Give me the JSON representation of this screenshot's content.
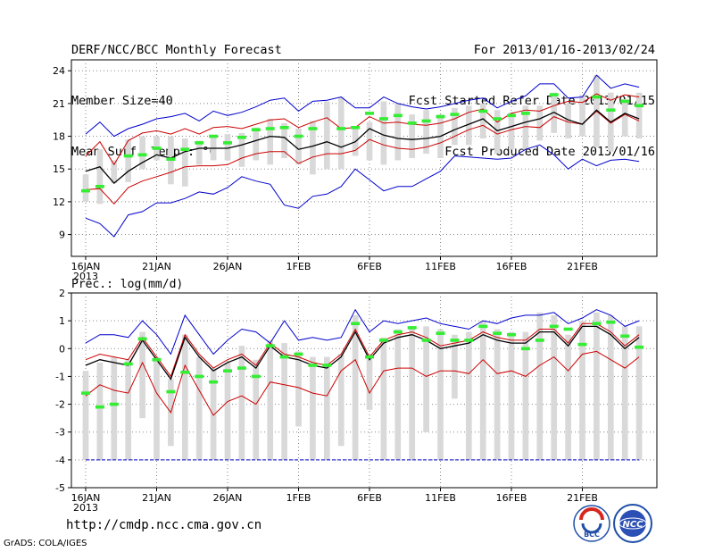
{
  "header": {
    "left": [
      "DERF/NCC/BCC Monthly Forecast",
      "Member Size=40",
      "Mean Surf. Temp.: °C"
    ],
    "right": [
      "For 2013/01/16-2013/02/24",
      "Fcst Started Refer Date 2013/01/15",
      "Fcst Produced Date 2013/01/16"
    ]
  },
  "footer": {
    "url": "http://cmdp.ncc.cma.gov.cn",
    "credit": "GrADS: COLA/IGES",
    "logos": [
      "BCC",
      "NCC"
    ]
  },
  "colors": {
    "envelope": "#0000cc",
    "spread": "#cc0000",
    "mean": "#000000",
    "member_box": "#d9d9d9",
    "marker": "#33ee33"
  },
  "chart_data": [
    {
      "type": "line",
      "title": "Mean Surf. Temp.: °C",
      "ylabel": "°C",
      "ylim": [
        7,
        25
      ],
      "yticks": [
        9,
        12,
        15,
        18,
        21,
        24
      ],
      "xticks": [
        "16JAN\n2013",
        "21JAN",
        "26JAN",
        "1FEB",
        "6FEB",
        "11FEB",
        "16FEB",
        "21FEB"
      ],
      "days": 40,
      "series": [
        {
          "name": "max",
          "values": [
            18.2,
            19.3,
            18.0,
            18.7,
            19.1,
            19.6,
            19.8,
            20.1,
            19.4,
            20.3,
            19.9,
            20.2,
            20.7,
            21.3,
            21.5,
            20.3,
            21.2,
            21.3,
            21.6,
            20.6,
            20.6,
            21.6,
            21.0,
            20.7,
            20.5,
            20.7,
            21.0,
            21.3,
            21.5,
            20.6,
            21.2,
            21.7,
            22.8,
            22.8,
            21.5,
            21.6,
            23.6,
            22.4,
            22.8,
            22.5
          ]
        },
        {
          "name": "upper",
          "values": [
            16.2,
            17.5,
            15.4,
            17.6,
            18.3,
            18.5,
            18.2,
            18.7,
            18.2,
            18.8,
            18.9,
            18.7,
            19.1,
            19.5,
            19.6,
            18.8,
            19.3,
            19.7,
            18.7,
            18.8,
            19.8,
            19.2,
            19.3,
            19.1,
            19.0,
            19.2,
            19.6,
            20.2,
            20.5,
            19.3,
            20.1,
            20.4,
            20.3,
            20.8,
            21.2,
            21.1,
            21.9,
            21.3,
            21.8,
            21.6
          ]
        },
        {
          "name": "mean",
          "values": [
            14.8,
            15.2,
            13.7,
            14.8,
            15.6,
            16.3,
            16.0,
            16.6,
            16.9,
            16.9,
            16.9,
            17.2,
            17.6,
            18.0,
            17.9,
            16.8,
            17.1,
            17.5,
            17.0,
            17.5,
            18.7,
            18.1,
            17.8,
            17.7,
            17.8,
            18.0,
            18.6,
            19.1,
            19.6,
            18.5,
            18.9,
            19.3,
            19.6,
            20.2,
            19.5,
            19.1,
            20.4,
            19.3,
            20.1,
            19.6
          ]
        },
        {
          "name": "lower",
          "values": [
            13.1,
            13.2,
            11.8,
            13.3,
            13.9,
            14.3,
            14.7,
            15.2,
            15.3,
            15.3,
            15.4,
            16.0,
            16.4,
            16.6,
            16.6,
            15.5,
            16.1,
            16.4,
            16.4,
            16.7,
            17.7,
            17.2,
            16.9,
            16.8,
            17.0,
            17.4,
            18.0,
            18.6,
            19.0,
            18.2,
            18.6,
            18.9,
            18.8,
            19.8,
            19.3,
            19.1,
            20.3,
            19.2,
            20.0,
            19.4
          ]
        },
        {
          "name": "min",
          "values": [
            10.5,
            10.0,
            8.8,
            10.8,
            11.1,
            11.9,
            11.9,
            12.3,
            12.9,
            12.7,
            13.3,
            14.3,
            13.9,
            13.6,
            11.7,
            11.4,
            12.5,
            12.7,
            13.4,
            15.0,
            14.0,
            13.0,
            13.4,
            13.4,
            14.1,
            14.8,
            16.2,
            16.1,
            16.0,
            15.9,
            16.0,
            16.8,
            17.2,
            16.3,
            15.0,
            15.9,
            15.3,
            15.8,
            15.9,
            15.7
          ]
        },
        {
          "name": "member_max",
          "values": [
            14.5,
            16.8,
            15.8,
            17.7,
            18.0,
            18.0,
            18.0,
            17.8,
            17.6,
            18.0,
            18.2,
            18.3,
            18.8,
            19.6,
            19.2,
            18.7,
            19.4,
            21.2,
            21.6,
            18.8,
            19.3,
            21.2,
            21.0,
            20.0,
            20.4,
            20.0,
            20.6,
            20.8,
            21.0,
            20.4,
            20.2,
            20.8,
            20.8,
            22.0,
            21.0,
            21.8,
            23.6,
            22.0,
            21.4,
            22.0
          ]
        },
        {
          "name": "member_min",
          "values": [
            12.0,
            11.8,
            13.7,
            13.8,
            15.0,
            15.8,
            13.6,
            13.4,
            15.4,
            15.8,
            15.8,
            15.2,
            15.8,
            15.4,
            16.0,
            15.4,
            14.5,
            15.0,
            15.0,
            16.2,
            15.8,
            15.4,
            15.8,
            16.0,
            16.4,
            16.0,
            17.2,
            17.2,
            17.8,
            16.4,
            16.8,
            16.8,
            17.6,
            18.3,
            17.8,
            18.0,
            17.0,
            16.6,
            18.0,
            17.8
          ]
        },
        {
          "name": "observed",
          "values": [
            13.0,
            13.4,
            null,
            16.2,
            16.3,
            16.9,
            15.9,
            16.8,
            17.4,
            18.0,
            17.4,
            17.9,
            18.6,
            18.7,
            18.8,
            18.0,
            18.7,
            null,
            18.7,
            18.8,
            20.1,
            19.6,
            19.9,
            19.2,
            19.4,
            19.8,
            20.0,
            null,
            20.3,
            19.6,
            19.9,
            20.1,
            null,
            21.8,
            null,
            null,
            21.6,
            20.4,
            21.2,
            20.8
          ]
        }
      ]
    },
    {
      "type": "line",
      "title": "Prec.: log(mm/d)",
      "ylabel": "log(mm/d)",
      "ylim": [
        -5,
        2
      ],
      "yticks": [
        -5,
        -4,
        -3,
        -2,
        -1,
        0,
        1,
        2
      ],
      "xticks": [
        "16JAN\n2013",
        "21JAN",
        "26JAN",
        "1FEB",
        "6FEB",
        "11FEB",
        "16FEB",
        "21FEB"
      ],
      "days": 40,
      "series": [
        {
          "name": "max",
          "values": [
            0.2,
            0.5,
            0.5,
            0.4,
            1.0,
            0.5,
            -0.2,
            1.2,
            0.5,
            -0.2,
            0.3,
            0.7,
            0.6,
            0.2,
            1.0,
            0.3,
            0.4,
            0.3,
            0.4,
            1.4,
            0.6,
            1.0,
            0.9,
            1.0,
            1.1,
            0.9,
            0.8,
            0.7,
            1.0,
            0.9,
            1.1,
            1.2,
            1.2,
            1.3,
            0.9,
            1.1,
            1.4,
            1.2,
            0.8,
            1.0
          ]
        },
        {
          "name": "upper",
          "values": [
            -0.4,
            -0.2,
            -0.3,
            -0.4,
            0.4,
            -0.3,
            -1.0,
            0.5,
            -0.2,
            -0.7,
            -0.4,
            -0.2,
            -0.6,
            0.2,
            -0.2,
            -0.3,
            -0.5,
            -0.6,
            -0.2,
            0.7,
            -0.3,
            0.3,
            0.5,
            0.6,
            0.4,
            0.1,
            0.2,
            0.3,
            0.6,
            0.4,
            0.3,
            0.3,
            0.7,
            0.7,
            0.2,
            0.9,
            0.9,
            0.6,
            0.1,
            0.5
          ]
        },
        {
          "name": "mean",
          "values": [
            -0.6,
            -0.4,
            -0.5,
            -0.6,
            0.3,
            -0.4,
            -1.1,
            0.4,
            -0.3,
            -0.8,
            -0.5,
            -0.3,
            -0.7,
            0.1,
            -0.3,
            -0.4,
            -0.6,
            -0.7,
            -0.3,
            0.6,
            -0.4,
            0.2,
            0.4,
            0.5,
            0.3,
            0.0,
            0.1,
            0.2,
            0.5,
            0.3,
            0.2,
            0.2,
            0.6,
            0.6,
            0.1,
            0.8,
            0.8,
            0.5,
            0.0,
            0.4
          ]
        },
        {
          "name": "lower",
          "values": [
            -1.7,
            -1.3,
            -1.5,
            -1.6,
            -0.5,
            -1.6,
            -2.3,
            -0.6,
            -1.5,
            -2.4,
            -1.9,
            -1.7,
            -2.0,
            -1.2,
            -1.3,
            -1.4,
            -1.6,
            -1.7,
            -0.8,
            -0.4,
            -1.6,
            -0.8,
            -0.7,
            -0.7,
            -1.0,
            -0.8,
            -0.8,
            -0.9,
            -0.4,
            -0.9,
            -0.8,
            -1.0,
            -0.6,
            -0.3,
            -0.8,
            -0.2,
            -0.1,
            -0.4,
            -0.7,
            -0.3
          ]
        },
        {
          "name": "bottom",
          "values": [
            -4,
            -4,
            -4,
            -4,
            -4,
            -4,
            -4,
            -4,
            -4,
            -4,
            -4,
            -4,
            -4,
            -4,
            -4,
            -4,
            -4,
            -4,
            -4,
            -4,
            -4,
            -4,
            -4,
            -4,
            -4,
            -4,
            -4,
            -4,
            -4,
            -4,
            -4,
            -4,
            -4,
            -4,
            -4,
            -4,
            -4,
            -4,
            -4,
            -4
          ]
        },
        {
          "name": "member_max",
          "values": [
            -0.8,
            -0.5,
            -0.3,
            -0.4,
            0.6,
            -0.3,
            -1.1,
            0.5,
            -0.3,
            -0.7,
            -0.5,
            0.1,
            -0.4,
            0.3,
            0.2,
            -0.1,
            -0.3,
            -0.3,
            -0.2,
            1.2,
            -0.2,
            0.4,
            0.7,
            0.8,
            0.8,
            0.7,
            0.5,
            0.6,
            1.0,
            0.7,
            0.6,
            0.6,
            1.3,
            1.2,
            0.5,
            1.0,
            1.3,
            1.2,
            0.8,
            0.8
          ]
        },
        {
          "name": "member_min",
          "values": [
            -4,
            -4,
            -4,
            -4,
            -2.5,
            -4,
            -3.5,
            -4,
            -4,
            -4,
            -4,
            -4,
            -4,
            -4,
            -4,
            -2.8,
            -4,
            -4,
            -3.5,
            -4,
            -2.2,
            -4,
            -4,
            -4,
            -3,
            -4,
            -1.8,
            -4,
            -4,
            -4,
            -4,
            -4,
            -4,
            -4,
            -4,
            -4,
            -4,
            -4,
            -4,
            -4
          ]
        },
        {
          "name": "observed",
          "values": [
            -1.6,
            -2.1,
            -2.0,
            -0.55,
            0.35,
            -0.4,
            -1.55,
            -0.85,
            -1.0,
            -1.2,
            -0.8,
            -0.7,
            -1.0,
            0.1,
            -0.3,
            -0.2,
            -0.6,
            -0.6,
            null,
            0.9,
            -0.3,
            0.3,
            0.6,
            0.75,
            0.3,
            0.55,
            0.3,
            0.3,
            0.8,
            0.55,
            0.5,
            0.0,
            0.3,
            0.8,
            0.7,
            0.15,
            0.9,
            0.95,
            0.45,
            0.05
          ]
        }
      ]
    }
  ]
}
